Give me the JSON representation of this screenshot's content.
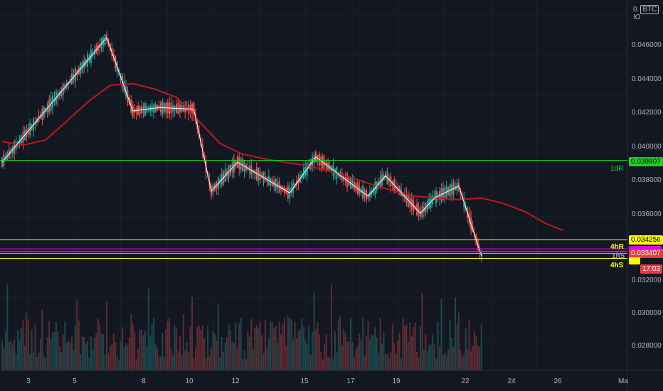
{
  "header": {
    "prefix": "0.",
    "symbol_badge": "BTC",
    "suffix": "IO"
  },
  "y_axis": {
    "ticks": [
      "0.046000",
      "0.044000",
      "0.042000",
      "0.040000",
      "0.038000",
      "0.036000",
      "0.032000",
      "0.030000",
      "0.028000"
    ]
  },
  "x_axis": {
    "ticks": [
      "3",
      "5",
      "8",
      "10",
      "12",
      "15",
      "17",
      "19",
      "22",
      "24",
      "26",
      "Ma"
    ]
  },
  "levels": [
    {
      "id": "1dR",
      "label": "1dR",
      "price_label": "0.038907",
      "color": "#1fd11f",
      "price": 0.038907
    },
    {
      "id": "4hR",
      "label": "4hR",
      "price_label": "0.034256",
      "color": "#ffff00",
      "price": 0.034256
    },
    {
      "id": "purple",
      "label": "",
      "price_label": "",
      "color": "#d500f9",
      "price": 0.03372
    },
    {
      "id": "1hS",
      "label": "1hS",
      "price_label": "",
      "color": "#b388ff",
      "price": 0.03345
    },
    {
      "id": "4hS",
      "label": "4hS",
      "price_label": "",
      "color": "#ffff00",
      "price": 0.03316
    }
  ],
  "current_price": {
    "value": "0.033407",
    "countdown": "17:03",
    "color": "#f23645"
  },
  "colors": {
    "up": "#26a69a",
    "down": "#ef5350",
    "ma": "#b71c1c",
    "zigzag": "#ffffff"
  },
  "chart_data": {
    "type": "candlestick",
    "symbol": "BTC",
    "y_range": [
      0.0266,
      0.0483
    ],
    "ma_line": [
      [
        0,
        0.04
      ],
      [
        12,
        0.0398
      ],
      [
        25,
        0.0401
      ],
      [
        37,
        0.0412
      ],
      [
        50,
        0.0424
      ],
      [
        62,
        0.0433
      ],
      [
        75,
        0.0434
      ],
      [
        87,
        0.0431
      ],
      [
        100,
        0.0426
      ],
      [
        112,
        0.0413
      ],
      [
        125,
        0.0399
      ],
      [
        137,
        0.0393
      ],
      [
        150,
        0.039
      ],
      [
        162,
        0.0388
      ],
      [
        175,
        0.0386
      ],
      [
        187,
        0.0383
      ],
      [
        200,
        0.0379
      ],
      [
        212,
        0.0375
      ],
      [
        225,
        0.0371
      ],
      [
        237,
        0.0368
      ],
      [
        250,
        0.0367
      ],
      [
        262,
        0.0366
      ],
      [
        275,
        0.0367
      ],
      [
        287,
        0.0364
      ],
      [
        300,
        0.0359
      ],
      [
        312,
        0.0352
      ],
      [
        322,
        0.0348
      ]
    ],
    "zigzag": [
      [
        0,
        0.0388
      ],
      [
        60,
        0.0461
      ],
      [
        75,
        0.0418
      ],
      [
        90,
        0.042
      ],
      [
        110,
        0.0419
      ],
      [
        120,
        0.0371
      ],
      [
        135,
        0.0388
      ],
      [
        165,
        0.037
      ],
      [
        180,
        0.0391
      ],
      [
        210,
        0.0368
      ],
      [
        220,
        0.038
      ],
      [
        240,
        0.0358
      ],
      [
        248,
        0.0367
      ],
      [
        262,
        0.0374
      ],
      [
        275,
        0.0333
      ]
    ]
  }
}
